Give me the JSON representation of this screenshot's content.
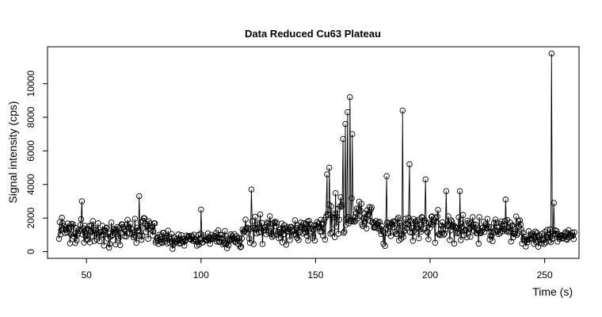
{
  "chart_data": {
    "type": "scatter",
    "title": "Data Reduced Cu63 Plateau",
    "xlabel": "Time (s)",
    "ylabel": "Signal intensity (cps)",
    "xlim": [
      33,
      265
    ],
    "ylim": [
      -400,
      12200
    ],
    "xticks": [
      50,
      100,
      150,
      200,
      250
    ],
    "yticks": [
      0,
      2000,
      4000,
      6000,
      8000,
      10000
    ],
    "grid": false,
    "legend": "none",
    "style": "points connected by vertical lines, open circle markers",
    "notable_points": [
      {
        "x": 48,
        "y": 3000
      },
      {
        "x": 73,
        "y": 3300
      },
      {
        "x": 100,
        "y": 2500
      },
      {
        "x": 122,
        "y": 3700
      },
      {
        "x": 155,
        "y": 4600
      },
      {
        "x": 156,
        "y": 5000
      },
      {
        "x": 162,
        "y": 6700
      },
      {
        "x": 163,
        "y": 7600
      },
      {
        "x": 164,
        "y": 8300
      },
      {
        "x": 165,
        "y": 9200
      },
      {
        "x": 166,
        "y": 7000
      },
      {
        "x": 181,
        "y": 4500
      },
      {
        "x": 188,
        "y": 8400
      },
      {
        "x": 191,
        "y": 5200
      },
      {
        "x": 198,
        "y": 4300
      },
      {
        "x": 207,
        "y": 3600
      },
      {
        "x": 213,
        "y": 3600
      },
      {
        "x": 233,
        "y": 3100
      },
      {
        "x": 253,
        "y": 11800
      },
      {
        "x": 254,
        "y": 2900
      }
    ],
    "baseline_segments": [
      {
        "x": [
          38,
          72
        ],
        "mean": 1200,
        "spread": 700
      },
      {
        "x": [
          72,
          80
        ],
        "mean": 1300,
        "spread": 800
      },
      {
        "x": [
          80,
          118
        ],
        "mean": 700,
        "spread": 400
      },
      {
        "x": [
          118,
          155
        ],
        "mean": 1300,
        "spread": 700
      },
      {
        "x": [
          155,
          175
        ],
        "mean": 2000,
        "spread": 1000
      },
      {
        "x": [
          175,
          240
        ],
        "mean": 1400,
        "spread": 700
      },
      {
        "x": [
          240,
          263
        ],
        "mean": 900,
        "spread": 500
      }
    ],
    "point_count": 700
  }
}
